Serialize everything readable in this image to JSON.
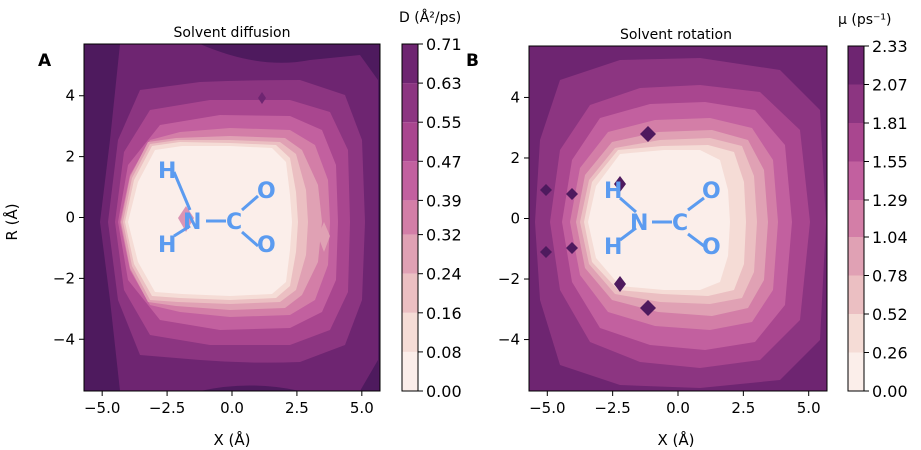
{
  "chart_data": [
    {
      "type": "heatmap",
      "panel_label": "A",
      "title": "Solvent diffusion",
      "xlabel": "X (Å)",
      "ylabel": "R (Å)",
      "xlim": [
        -5.7,
        5.7
      ],
      "ylim": [
        -5.7,
        5.7
      ],
      "xticks": [
        -5.0,
        -2.5,
        0.0,
        2.5,
        5.0
      ],
      "xtick_labels": [
        "−5.0",
        "−2.5",
        "0.0",
        "2.5",
        "5.0"
      ],
      "yticks": [
        4,
        2,
        0,
        -2,
        -4
      ],
      "ytick_labels": [
        "4",
        "2",
        "0",
        "−2",
        "−4"
      ],
      "colorbar": {
        "label": "D (Å²/ps)",
        "levels": [
          0.0,
          0.08,
          0.16,
          0.24,
          0.32,
          0.39,
          0.47,
          0.55,
          0.63,
          0.71
        ],
        "tick_labels": [
          "0.00",
          "0.08",
          "0.16",
          "0.24",
          "0.32",
          "0.39",
          "0.47",
          "0.55",
          "0.63",
          "0.71"
        ]
      },
      "molecule_labels": {
        "h_top": "H",
        "h_bottom": "H",
        "n": "N",
        "c": "C",
        "o_top": "O",
        "o_bottom": "O"
      }
    },
    {
      "type": "heatmap",
      "panel_label": "B",
      "title": "Solvent rotation",
      "xlabel": "X (Å)",
      "ylabel": "",
      "xlim": [
        -5.7,
        5.7
      ],
      "ylim": [
        -5.7,
        5.7
      ],
      "xticks": [
        -5.0,
        -2.5,
        0.0,
        2.5,
        5.0
      ],
      "xtick_labels": [
        "−5.0",
        "−2.5",
        "0.0",
        "2.5",
        "5.0"
      ],
      "yticks": [
        4,
        2,
        0,
        -2,
        -4
      ],
      "ytick_labels": [
        "4",
        "2",
        "0",
        "−2",
        "−4"
      ],
      "colorbar": {
        "label": "μ (ps⁻¹)",
        "levels": [
          0.0,
          0.26,
          0.52,
          0.78,
          1.04,
          1.29,
          1.55,
          1.81,
          2.07,
          2.33
        ],
        "tick_labels": [
          "0.00",
          "0.26",
          "0.52",
          "0.78",
          "1.04",
          "1.29",
          "1.55",
          "1.81",
          "2.07",
          "2.33"
        ]
      },
      "molecule_labels": {
        "h_top": "H",
        "h_bottom": "H",
        "n": "N",
        "c": "C",
        "o_top": "O",
        "o_bottom": "O"
      }
    }
  ],
  "colors": {
    "bands": [
      "#fbeeea",
      "#f5dcd6",
      "#ebbfc2",
      "#e0a1b4",
      "#d37ea7",
      "#c2609f",
      "#a9468f",
      "#8c3581",
      "#6e2571",
      "#4e1a5e"
    ],
    "molecule": "#5b9bf0"
  }
}
